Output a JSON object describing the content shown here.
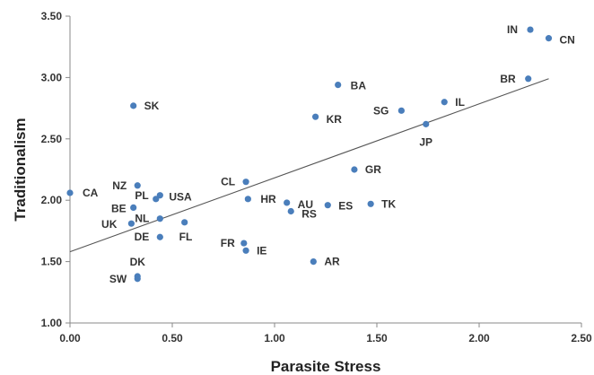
{
  "chart_data": {
    "type": "scatter",
    "title": "",
    "xlabel": "Parasite Stress",
    "ylabel": "Traditionalism",
    "xlim": [
      0.0,
      2.5
    ],
    "ylim": [
      1.0,
      3.5
    ],
    "x_ticks": [
      "0.00",
      "0.50",
      "1.00",
      "1.50",
      "2.00",
      "2.50"
    ],
    "y_ticks": [
      "1.00",
      "1.50",
      "2.00",
      "2.50",
      "3.00",
      "3.50"
    ],
    "grid": false,
    "legend": "none",
    "point_color": "#4a7ebb",
    "trendline": {
      "type": "linear",
      "color": "#555555",
      "x": [
        0.0,
        2.34
      ],
      "y": [
        1.58,
        2.99
      ]
    },
    "points": [
      {
        "label": "IN",
        "x": 2.25,
        "y": 3.39
      },
      {
        "label": "CN",
        "x": 2.34,
        "y": 3.32
      },
      {
        "label": "BR",
        "x": 2.24,
        "y": 2.99
      },
      {
        "label": "BA",
        "x": 1.31,
        "y": 2.94
      },
      {
        "label": "IL",
        "x": 1.83,
        "y": 2.8
      },
      {
        "label": "SK",
        "x": 0.31,
        "y": 2.77
      },
      {
        "label": "SG",
        "x": 1.62,
        "y": 2.73
      },
      {
        "label": "KR",
        "x": 1.2,
        "y": 2.68
      },
      {
        "label": "JP",
        "x": 1.74,
        "y": 2.62
      },
      {
        "label": "GR",
        "x": 1.39,
        "y": 2.25
      },
      {
        "label": "CL",
        "x": 0.86,
        "y": 2.15
      },
      {
        "label": "NZ",
        "x": 0.33,
        "y": 2.12
      },
      {
        "label": "CA",
        "x": 0.0,
        "y": 2.06
      },
      {
        "label": "USA",
        "x": 0.44,
        "y": 2.04
      },
      {
        "label": "PL",
        "x": 0.42,
        "y": 2.01
      },
      {
        "label": "HR",
        "x": 0.87,
        "y": 2.01
      },
      {
        "label": "AU",
        "x": 1.06,
        "y": 1.98
      },
      {
        "label": "TK",
        "x": 1.47,
        "y": 1.97
      },
      {
        "label": "ES",
        "x": 1.26,
        "y": 1.96
      },
      {
        "label": "BE",
        "x": 0.31,
        "y": 1.94
      },
      {
        "label": "RS",
        "x": 1.08,
        "y": 1.91
      },
      {
        "label": "NL",
        "x": 0.44,
        "y": 1.85
      },
      {
        "label": "FL",
        "x": 0.56,
        "y": 1.82
      },
      {
        "label": "UK",
        "x": 0.3,
        "y": 1.81
      },
      {
        "label": "DE",
        "x": 0.44,
        "y": 1.7
      },
      {
        "label": "FR",
        "x": 0.85,
        "y": 1.65
      },
      {
        "label": "IE",
        "x": 0.86,
        "y": 1.59
      },
      {
        "label": "AR",
        "x": 1.19,
        "y": 1.5
      },
      {
        "label": "DK",
        "x": 0.33,
        "y": 1.38
      },
      {
        "label": "SW",
        "x": 0.33,
        "y": 1.36
      }
    ]
  }
}
